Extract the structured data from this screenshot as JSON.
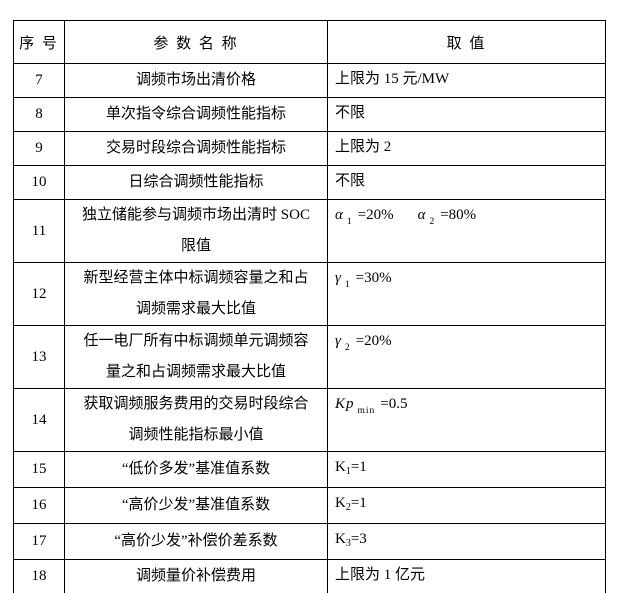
{
  "table": {
    "headers": {
      "num": "序 号",
      "name": "参 数 名 称",
      "value": "取 值"
    },
    "rows": [
      {
        "num": "7",
        "name": "调频市场出清价格",
        "tall": false,
        "value": [
          {
            "s": "n",
            "t": "上限为 15 元/MW"
          }
        ]
      },
      {
        "num": "8",
        "name": "单次指令综合调频性能指标",
        "tall": false,
        "value": [
          {
            "s": "n",
            "t": "不限"
          }
        ]
      },
      {
        "num": "9",
        "name": "交易时段综合调频性能指标",
        "tall": false,
        "value": [
          {
            "s": "n",
            "t": "上限为 2"
          }
        ]
      },
      {
        "num": "10",
        "name": "日综合调频性能指标",
        "tall": false,
        "value": [
          {
            "s": "n",
            "t": "不限"
          }
        ]
      },
      {
        "num": "11",
        "name": "独立储能参与调频市场出清时 SOC 限值",
        "tall": true,
        "value": [
          {
            "s": "i",
            "t": "α"
          },
          {
            "s": "isub",
            "t": "1"
          },
          {
            "s": "n",
            "t": "=20%"
          },
          {
            "s": "gap",
            "t": ""
          },
          {
            "s": "i",
            "t": "α"
          },
          {
            "s": "isub",
            "t": "2"
          },
          {
            "s": "n",
            "t": "=80%"
          }
        ]
      },
      {
        "num": "12",
        "name": "新型经营主体中标调频容量之和占调频需求最大比值",
        "tall": true,
        "value": [
          {
            "s": "i",
            "t": "γ"
          },
          {
            "s": "isub",
            "t": "1"
          },
          {
            "s": "n",
            "t": "=30%"
          }
        ]
      },
      {
        "num": "13",
        "name": "任一电厂所有中标调频单元调频容量之和占调频需求最大比值",
        "tall": true,
        "value": [
          {
            "s": "i",
            "t": "γ"
          },
          {
            "s": "isub",
            "t": "2"
          },
          {
            "s": "n",
            "t": "=20%"
          }
        ]
      },
      {
        "num": "14",
        "name": "获取调频服务费用的交易时段综合调频性能指标最小值",
        "tall": true,
        "value": [
          {
            "s": "i",
            "t": "Kp"
          },
          {
            "s": "isub",
            "t": "min"
          },
          {
            "s": "n",
            "t": "=0.5"
          }
        ]
      },
      {
        "num": "15",
        "name": "“低价多发”基准值系数",
        "tall": false,
        "value": [
          {
            "s": "n",
            "t": "K"
          },
          {
            "s": "sub",
            "t": "1"
          },
          {
            "s": "n",
            "t": "=1"
          }
        ]
      },
      {
        "num": "16",
        "name": "“高价少发”基准值系数",
        "tall": false,
        "value": [
          {
            "s": "n",
            "t": "K"
          },
          {
            "s": "sub",
            "t": "2"
          },
          {
            "s": "n",
            "t": "=1"
          }
        ]
      },
      {
        "num": "17",
        "name": "“高价少发”补偿价差系数",
        "tall": false,
        "value": [
          {
            "s": "n",
            "t": "K"
          },
          {
            "s": "sub",
            "t": "3"
          },
          {
            "s": "n",
            "t": "=3"
          }
        ]
      },
      {
        "num": "18",
        "name": "调频量价补偿费用",
        "tall": false,
        "value": [
          {
            "s": "n",
            "t": "上限为 1 亿元"
          }
        ]
      }
    ]
  }
}
